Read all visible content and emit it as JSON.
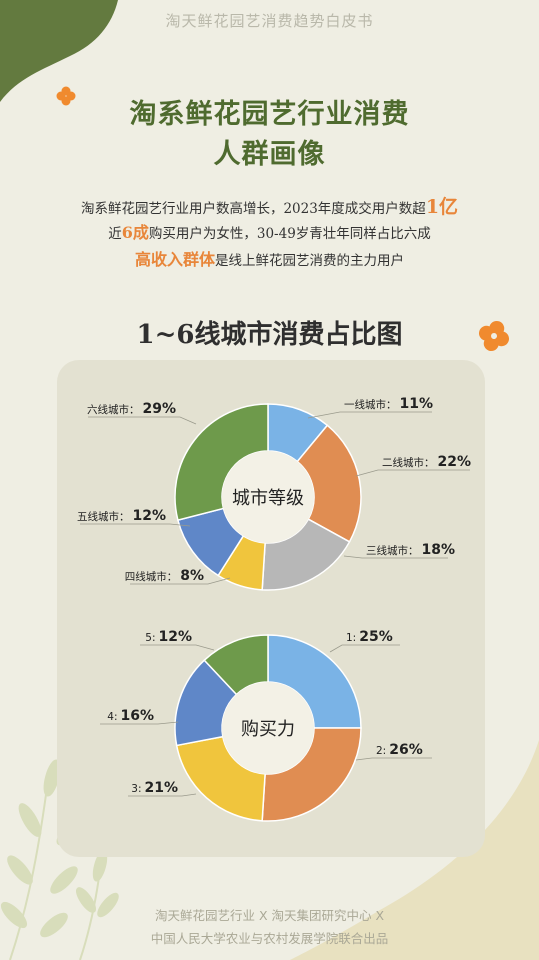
{
  "header": "淘天鲜花园艺消费趋势白皮书",
  "title_line1": "淘系鲜花园艺行业消费",
  "title_line2": "人群画像",
  "desc": {
    "line1_pre": "淘系鲜花园艺行业用户数高增长，2023年度成交用户数超",
    "line1_hl": "1亿",
    "line2_pre": "近",
    "line2_hl": "6成",
    "line2_post": "购买用户为女性，30-49岁青壮年同样占比六成",
    "line3_hl": "高收入群体",
    "line3_post": "是线上鲜花园艺消费的主力用户"
  },
  "chart_section_title": "1~6线城市消费占比图",
  "colors": {
    "background": "#efeee3",
    "panel": "#e3e1d1",
    "title_green": "#4f6b2f",
    "highlight_orange": "#e8863a",
    "blob_green": "#637a3f"
  },
  "chart_data": [
    {
      "type": "pie",
      "center_label": "城市等级",
      "slices": [
        {
          "label": "一线城市：",
          "value": 11,
          "display": "11%",
          "color": "#7ab3e6"
        },
        {
          "label": "二线城市：",
          "value": 22,
          "display": "22%",
          "color": "#e08d52"
        },
        {
          "label": "三线城市：",
          "value": 18,
          "display": "18%",
          "color": "#b7b7b7"
        },
        {
          "label": "四线城市：",
          "value": 8,
          "display": "8%",
          "color": "#f0c53d"
        },
        {
          "label": "五线城市：",
          "value": 12,
          "display": "12%",
          "color": "#5f87c8"
        },
        {
          "label": "六线城市：",
          "value": 29,
          "display": "29%",
          "color": "#6e9a4b"
        }
      ]
    },
    {
      "type": "pie",
      "center_label": "购买力",
      "slices": [
        {
          "label": "1:",
          "value": 25,
          "display": "25%",
          "color": "#7ab3e6"
        },
        {
          "label": "2:",
          "value": 26,
          "display": "26%",
          "color": "#e08d52"
        },
        {
          "label": "3:",
          "value": 21,
          "display": "21%",
          "color": "#f0c53d"
        },
        {
          "label": "4:",
          "value": 16,
          "display": "16%",
          "color": "#5f87c8"
        },
        {
          "label": "5:",
          "value": 12,
          "display": "12%",
          "color": "#6e9a4b"
        }
      ]
    }
  ],
  "footer_line1": "淘天鲜花园艺行业 X 淘天集团研究中心 X",
  "footer_line2": "中国人民大学农业与农村发展学院联合出品",
  "icons": [
    "orange-clover-icon",
    "leaf-branch-icon"
  ]
}
